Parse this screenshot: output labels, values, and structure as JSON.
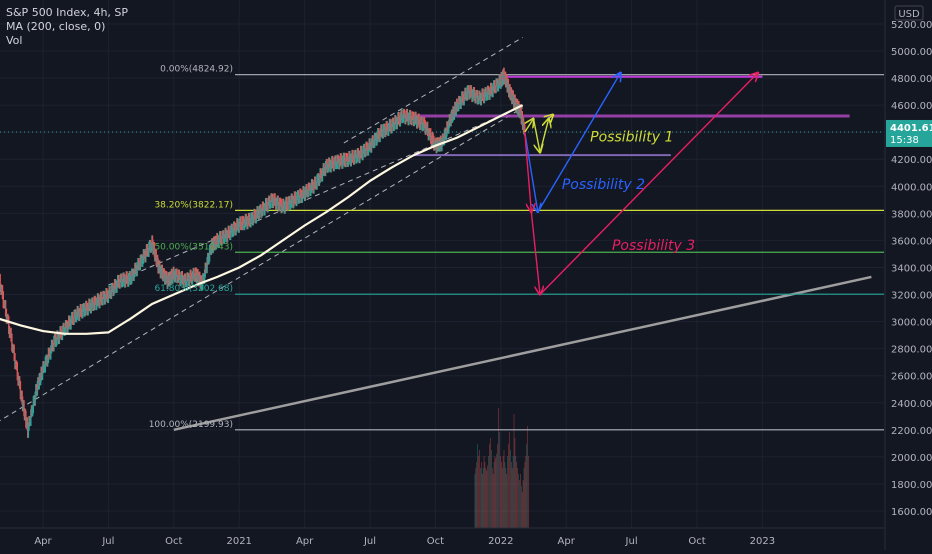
{
  "header": {
    "symbol_line": "S&P 500 Index, 4h, SP",
    "ma_line": "MA (200, close, 0)",
    "vol_line": "Vol"
  },
  "price_axis": {
    "currency": "USD",
    "ticks": [
      5200,
      5000,
      4800,
      4600,
      4400,
      4200,
      4000,
      3800,
      3600,
      3400,
      3200,
      3000,
      2800,
      2600,
      2400,
      2200,
      2000,
      1800,
      1600
    ],
    "tick_labels": [
      "5200.00",
      "5000.00",
      "4800.00",
      "4600.00",
      "4400.00",
      "4200.00",
      "4000.00",
      "3800.00",
      "3600.00",
      "3400.00",
      "3200.00",
      "3000.00",
      "2800.00",
      "2600.00",
      "2400.00",
      "2200.00",
      "2000.00",
      "1800.00",
      "1600.00"
    ],
    "last_price": "4401.61",
    "last_price_value": 4401.61,
    "countdown": "15:38"
  },
  "time_axis": {
    "labels": [
      "Apr",
      "Jul",
      "Oct",
      "2021",
      "Apr",
      "Jul",
      "Oct",
      "2022",
      "Apr",
      "Jul",
      "Oct",
      "2023"
    ],
    "x_months": [
      3,
      6,
      9,
      12,
      15,
      18,
      21,
      24,
      27,
      30,
      33,
      36
    ]
  },
  "chart_data": {
    "type": "candlestick",
    "title": "S&P 500 Index, 4h, SP",
    "indicator": "MA (200, close, 0)",
    "ylim": [
      1520,
      5300
    ],
    "price_path": [
      [
        -0.9,
        3300
      ],
      [
        0,
        3390
      ],
      [
        0.5,
        3370
      ],
      [
        1,
        3300
      ],
      [
        1.5,
        2900
      ],
      [
        2,
        2450
      ],
      [
        2.3,
        2200
      ],
      [
        2.7,
        2500
      ],
      [
        3,
        2650
      ],
      [
        3.5,
        2850
      ],
      [
        4,
        2950
      ],
      [
        4.5,
        3050
      ],
      [
        5,
        3100
      ],
      [
        5.5,
        3150
      ],
      [
        6,
        3200
      ],
      [
        6.5,
        3300
      ],
      [
        7,
        3320
      ],
      [
        7.5,
        3450
      ],
      [
        8,
        3580
      ],
      [
        8.3,
        3400
      ],
      [
        8.7,
        3300
      ],
      [
        9,
        3350
      ],
      [
        9.5,
        3300
      ],
      [
        10,
        3350
      ],
      [
        10.3,
        3280
      ],
      [
        10.7,
        3550
      ],
      [
        11,
        3600
      ],
      [
        11.5,
        3650
      ],
      [
        12,
        3720
      ],
      [
        12.5,
        3750
      ],
      [
        13,
        3820
      ],
      [
        13.5,
        3900
      ],
      [
        14,
        3850
      ],
      [
        14.5,
        3900
      ],
      [
        15,
        3950
      ],
      [
        15.5,
        4020
      ],
      [
        16,
        4150
      ],
      [
        16.5,
        4180
      ],
      [
        17,
        4200
      ],
      [
        17.5,
        4230
      ],
      [
        18,
        4300
      ],
      [
        18.5,
        4400
      ],
      [
        19,
        4450
      ],
      [
        19.5,
        4520
      ],
      [
        20,
        4500
      ],
      [
        20.5,
        4450
      ],
      [
        21,
        4300
      ],
      [
        21.3,
        4320
      ],
      [
        21.7,
        4500
      ],
      [
        22,
        4600
      ],
      [
        22.5,
        4700
      ],
      [
        23,
        4650
      ],
      [
        23.5,
        4700
      ],
      [
        24,
        4780
      ],
      [
        24.15,
        4820
      ],
      [
        24.4,
        4700
      ],
      [
        24.7,
        4600
      ],
      [
        24.9,
        4550
      ],
      [
        25.1,
        4400
      ]
    ],
    "moving_average_200": [
      [
        -0.9,
        3150
      ],
      [
        0,
        3080
      ],
      [
        1,
        3020
      ],
      [
        2,
        2970
      ],
      [
        3,
        2930
      ],
      [
        4,
        2910
      ],
      [
        5,
        2910
      ],
      [
        6,
        2920
      ],
      [
        7,
        3020
      ],
      [
        8,
        3130
      ],
      [
        9,
        3200
      ],
      [
        10,
        3270
      ],
      [
        11,
        3330
      ],
      [
        12,
        3400
      ],
      [
        13,
        3490
      ],
      [
        14,
        3600
      ],
      [
        15,
        3710
      ],
      [
        16,
        3810
      ],
      [
        17,
        3920
      ],
      [
        18,
        4040
      ],
      [
        19,
        4140
      ],
      [
        20,
        4230
      ],
      [
        21,
        4300
      ],
      [
        22,
        4360
      ],
      [
        23,
        4440
      ],
      [
        24,
        4520
      ],
      [
        25,
        4600
      ]
    ],
    "fibonacci_levels": [
      {
        "label": "0.00%(4824.92)",
        "value": 4824.92,
        "color": "#b2b5be"
      },
      {
        "label": "38.20%(3822.17)",
        "value": 3822.17,
        "color": "#cddc39"
      },
      {
        "label": "50.00%(3512.43)",
        "value": 3512.43,
        "color": "#4caf50"
      },
      {
        "label": "61.80%(3202.68)",
        "value": 3202.68,
        "color": "#26a69a"
      },
      {
        "label": "100.00%(2199.93)",
        "value": 2199.93,
        "color": "#b2b5be"
      }
    ],
    "support_resistance_lines": [
      {
        "name": "top",
        "y": 4810,
        "x_start": 24.1,
        "x_end": 36,
        "color": "#e040fb"
      },
      {
        "name": "mid",
        "y": 4520,
        "x_start": 20,
        "x_end": 40,
        "color": "#ab47bc"
      },
      {
        "name": "low",
        "y": 4230,
        "x_start": 20,
        "x_end": 31.8,
        "color": "#9575cd"
      }
    ],
    "channel_lines": [
      {
        "from": [
          -0.2,
          2150
        ],
        "to": [
          25,
          4580
        ]
      },
      {
        "from": [
          16.8,
          4320
        ],
        "to": [
          25,
          5100
        ]
      },
      {
        "from": [
          6,
          3270
        ],
        "to": [
          25,
          4590
        ]
      }
    ],
    "long_trendline": {
      "from": [
        9,
        2200
      ],
      "to": [
        41,
        3330
      ],
      "color": "#9e9e9e"
    },
    "scenarios": [
      {
        "label": "Possibility 1",
        "color": "#cddc39",
        "path": [
          [
            25.1,
            4400
          ],
          [
            25.5,
            4500
          ],
          [
            25.8,
            4250
          ],
          [
            26.2,
            4500
          ],
          [
            26.4,
            4530
          ]
        ],
        "label_at": [
          28.1,
          4330
        ]
      },
      {
        "label": "Possibility 2",
        "color": "#2962ff",
        "path": [
          [
            25.1,
            4400
          ],
          [
            25.7,
            3810
          ],
          [
            29.5,
            4840
          ]
        ],
        "label_at": [
          26.8,
          3980
        ]
      },
      {
        "label": "Possibility 3",
        "color": "#e91e63",
        "path": [
          [
            25.1,
            4400
          ],
          [
            25.4,
            3810
          ],
          [
            25.8,
            3200
          ],
          [
            35.8,
            4840
          ]
        ],
        "label_at": [
          29.1,
          3530
        ]
      }
    ],
    "volume": {
      "x_range": [
        22.8,
        25.3
      ],
      "bars": [
        0.45,
        0.5,
        0.55,
        0.7,
        0.6,
        0.65,
        0.5,
        0.55,
        0.45,
        0.5,
        0.6,
        0.55,
        0.5,
        0.48,
        0.52,
        0.6,
        0.7,
        0.75,
        0.65,
        0.5,
        0.45,
        0.55,
        0.6,
        0.58,
        0.62,
        0.7,
        1.0,
        0.8,
        0.6,
        0.55,
        0.5,
        0.6,
        0.65,
        0.55,
        0.5,
        0.45,
        0.6,
        0.7,
        0.8,
        0.65,
        0.55,
        0.5,
        0.6,
        0.95,
        0.75,
        0.6,
        0.55,
        0.5,
        0.45,
        0.4,
        0.45,
        0.35,
        0.3,
        0.4,
        0.5,
        0.55,
        0.6,
        0.7,
        0.85,
        0.6
      ]
    }
  }
}
